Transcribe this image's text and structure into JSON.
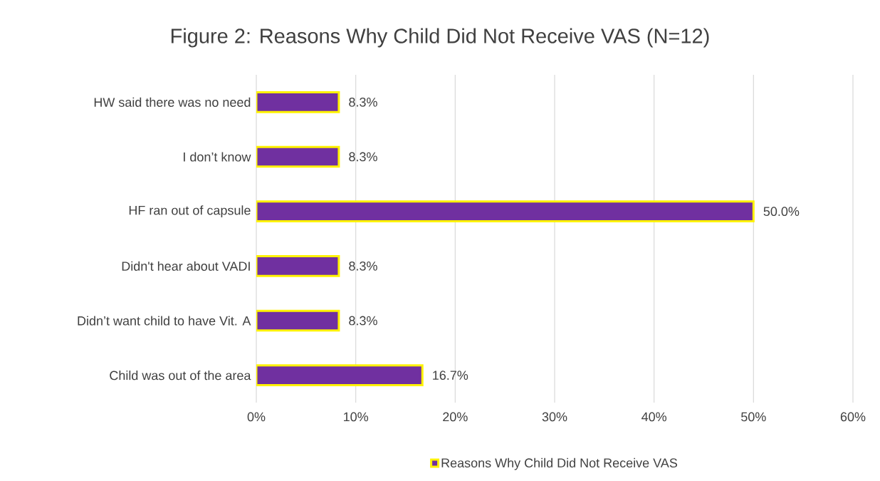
{
  "chart_data": {
    "type": "bar",
    "orientation": "horizontal",
    "title": "Figure 2: Reasons Why Child Did Not Receive VAS (N=12)",
    "categories": [
      "HW said there was no need",
      "I don’t know",
      "HF ran out of capsule",
      "Didn't hear about VADI",
      "Didn’t want child to have Vit. A",
      "Child was out of the area"
    ],
    "series": [
      {
        "name": "Reasons Why Child Did Not Receive VAS",
        "color": "#7030a0",
        "values": [
          8.3,
          8.3,
          50.0,
          8.3,
          8.3,
          16.7
        ],
        "value_labels": [
          "8.3%",
          "8.3%",
          "50.0%",
          "8.3%",
          "8.3%",
          "16.7%"
        ]
      }
    ],
    "xlim": [
      0,
      60
    ],
    "xticks": [
      {
        "value": 0,
        "label": "0%"
      },
      {
        "value": 10,
        "label": "10%"
      },
      {
        "value": 20,
        "label": "20%"
      },
      {
        "value": 30,
        "label": "30%"
      },
      {
        "value": 40,
        "label": "40%"
      },
      {
        "value": 50,
        "label": "50%"
      },
      {
        "value": 60,
        "label": "60%"
      }
    ],
    "grid": "x",
    "legend": "bottom"
  }
}
